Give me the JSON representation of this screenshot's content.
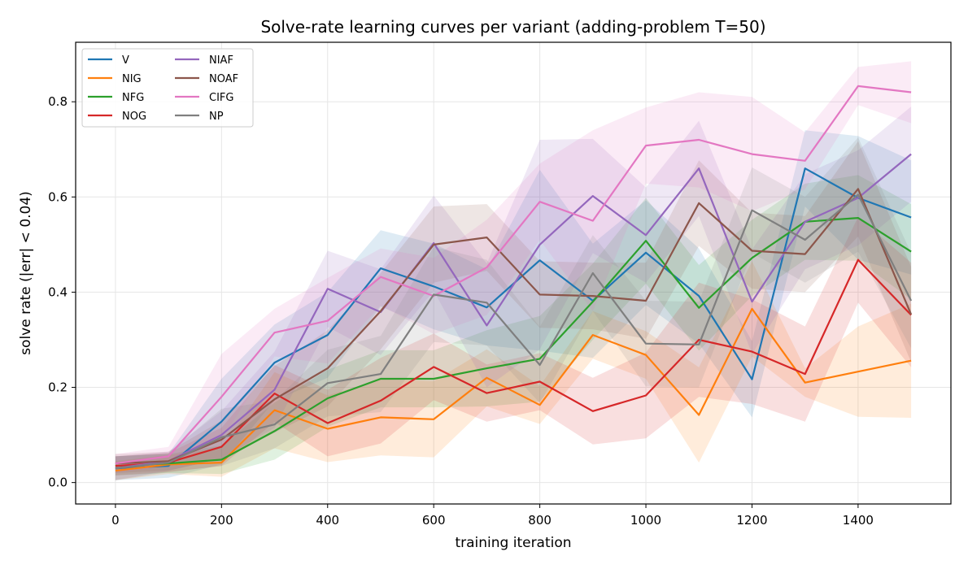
{
  "chart_data": {
    "type": "line",
    "title": "Solve-rate learning curves per variant (adding-problem T=50)",
    "xlabel": "training iteration",
    "ylabel": "solve rate (|err| < 0.04)",
    "xlim": [
      -75,
      1575
    ],
    "ylim": [
      -0.045,
      0.925
    ],
    "xticks": [
      0,
      200,
      400,
      600,
      800,
      1000,
      1200,
      1400
    ],
    "yticks": [
      0.0,
      0.2,
      0.4,
      0.6,
      0.8
    ],
    "xtick_labels": [
      "0",
      "200",
      "400",
      "600",
      "800",
      "1000",
      "1200",
      "1400"
    ],
    "ytick_labels": [
      "0.0",
      "0.2",
      "0.4",
      "0.6",
      "0.8"
    ],
    "grid": true,
    "legend": {
      "position": "top-left",
      "columns": 2
    },
    "x": [
      0,
      100,
      200,
      300,
      400,
      500,
      600,
      700,
      800,
      900,
      1000,
      1100,
      1200,
      1300,
      1400,
      1500
    ],
    "series": [
      {
        "name": "V",
        "color": "#1f77b4",
        "values": [
          0.03,
          0.035,
          0.128,
          0.252,
          0.31,
          0.45,
          0.412,
          0.368,
          0.467,
          0.382,
          0.483,
          0.392,
          0.217,
          0.66,
          0.598,
          0.557
        ],
        "band": [
          0.025,
          0.025,
          0.09,
          0.08,
          0.09,
          0.08,
          0.09,
          0.08,
          0.19,
          0.12,
          0.11,
          0.1,
          0.08,
          0.08,
          0.13,
          0.12
        ]
      },
      {
        "name": "NIG",
        "color": "#ff7f0e",
        "values": [
          0.025,
          0.038,
          0.042,
          0.152,
          0.113,
          0.137,
          0.133,
          0.22,
          0.163,
          0.31,
          0.268,
          0.142,
          0.365,
          0.21,
          0.233,
          0.256
        ],
        "band": [
          0.02,
          0.02,
          0.03,
          0.08,
          0.07,
          0.08,
          0.08,
          0.06,
          0.04,
          0.05,
          0.05,
          0.1,
          0.1,
          0.03,
          0.095,
          0.12
        ]
      },
      {
        "name": "NFG",
        "color": "#2ca02c",
        "values": [
          0.035,
          0.04,
          0.048,
          0.108,
          0.177,
          0.218,
          0.218,
          0.24,
          0.26,
          0.38,
          0.508,
          0.367,
          0.472,
          0.548,
          0.556,
          0.485
        ],
        "band": [
          0.02,
          0.02,
          0.03,
          0.06,
          0.06,
          0.06,
          0.06,
          0.08,
          0.09,
          0.08,
          0.09,
          0.09,
          0.08,
          0.08,
          0.09,
          0.1
        ]
      },
      {
        "name": "NOG",
        "color": "#d62728",
        "values": [
          0.035,
          0.042,
          0.075,
          0.187,
          0.125,
          0.172,
          0.243,
          0.188,
          0.212,
          0.15,
          0.183,
          0.3,
          0.275,
          0.228,
          0.468,
          0.352
        ],
        "band": [
          0.02,
          0.02,
          0.04,
          0.06,
          0.07,
          0.09,
          0.07,
          0.06,
          0.06,
          0.07,
          0.09,
          0.12,
          0.11,
          0.1,
          0.09,
          0.11
        ]
      },
      {
        "name": "NIAF",
        "color": "#9467bd",
        "values": [
          0.03,
          0.045,
          0.1,
          0.195,
          0.407,
          0.358,
          0.503,
          0.33,
          0.5,
          0.602,
          0.52,
          0.66,
          0.38,
          0.548,
          0.598,
          0.69
        ],
        "band": [
          0.025,
          0.02,
          0.05,
          0.08,
          0.08,
          0.09,
          0.1,
          0.13,
          0.22,
          0.12,
          0.1,
          0.1,
          0.11,
          0.1,
          0.1,
          0.1
        ]
      },
      {
        "name": "NOAF",
        "color": "#8c564b",
        "values": [
          0.04,
          0.045,
          0.09,
          0.175,
          0.24,
          0.36,
          0.5,
          0.515,
          0.395,
          0.392,
          0.382,
          0.587,
          0.487,
          0.48,
          0.617,
          0.353
        ],
        "band": [
          0.02,
          0.02,
          0.04,
          0.07,
          0.08,
          0.08,
          0.08,
          0.07,
          0.07,
          0.07,
          0.08,
          0.09,
          0.08,
          0.08,
          0.1,
          0.1
        ]
      },
      {
        "name": "CIFG",
        "color": "#e377c2",
        "values": [
          0.04,
          0.055,
          0.18,
          0.315,
          0.34,
          0.432,
          0.392,
          0.452,
          0.59,
          0.55,
          0.708,
          0.72,
          0.69,
          0.676,
          0.833,
          0.82
        ],
        "band": [
          0.02,
          0.02,
          0.09,
          0.05,
          0.09,
          0.06,
          0.08,
          0.1,
          0.08,
          0.19,
          0.08,
          0.1,
          0.12,
          0.06,
          0.04,
          0.065
        ]
      },
      {
        "name": "NP",
        "color": "#7f7f7f",
        "values": [
          0.03,
          0.042,
          0.095,
          0.122,
          0.209,
          0.228,
          0.395,
          0.378,
          0.247,
          0.44,
          0.292,
          0.29,
          0.572,
          0.51,
          0.605,
          0.382
        ],
        "band": [
          0.025,
          0.02,
          0.06,
          0.05,
          0.07,
          0.08,
          0.1,
          0.09,
          0.08,
          0.08,
          0.09,
          0.09,
          0.09,
          0.09,
          0.12,
          0.1
        ]
      }
    ]
  }
}
